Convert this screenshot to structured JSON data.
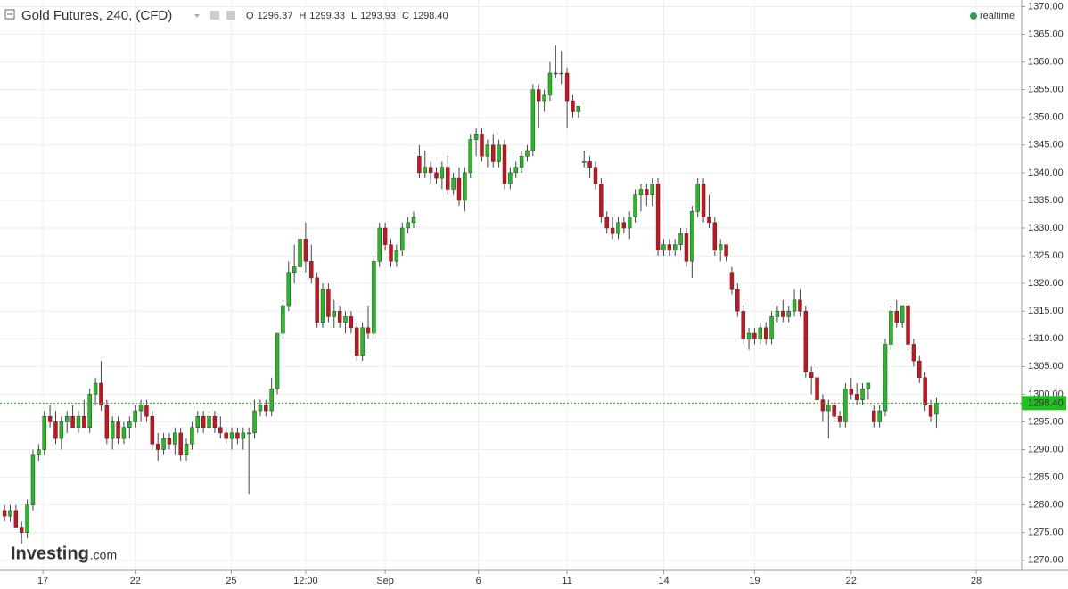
{
  "chart_data": {
    "type": "candlestick",
    "title": "Gold Futures, 240, (CFD)",
    "header_ohlc": [
      {
        "key": "O",
        "value": "1296.37"
      },
      {
        "key": "H",
        "value": "1299.33"
      },
      {
        "key": "L",
        "value": "1293.93"
      },
      {
        "key": "C",
        "value": "1298.40"
      }
    ],
    "status": "realtime",
    "logo": {
      "main": "Investing",
      "suffix": ".com"
    },
    "up_color": "#1fbf1f",
    "down_color": "#d0101c",
    "last_price": {
      "value": 1298.4,
      "label": "1298.40"
    },
    "ylim": [
      1268.2,
      1371.2
    ],
    "yticks": [
      {
        "value": 1270,
        "label": "1270.00"
      },
      {
        "value": 1275,
        "label": "1275.00"
      },
      {
        "value": 1280,
        "label": "1280.00"
      },
      {
        "value": 1285,
        "label": "1285.00"
      },
      {
        "value": 1290,
        "label": "1290.00"
      },
      {
        "value": 1295,
        "label": "1295.00"
      },
      {
        "value": 1300,
        "label": "1300.00"
      },
      {
        "value": 1305,
        "label": "1305.00"
      },
      {
        "value": 1310,
        "label": "1310.00"
      },
      {
        "value": 1315,
        "label": "1315.00"
      },
      {
        "value": 1320,
        "label": "1320.00"
      },
      {
        "value": 1325,
        "label": "1325.00"
      },
      {
        "value": 1330,
        "label": "1330.00"
      },
      {
        "value": 1335,
        "label": "1335.00"
      },
      {
        "value": 1340,
        "label": "1340.00"
      },
      {
        "value": 1345,
        "label": "1345.00"
      },
      {
        "value": 1350,
        "label": "1350.00"
      },
      {
        "value": 1355,
        "label": "1355.00"
      },
      {
        "value": 1360,
        "label": "1360.00"
      },
      {
        "value": 1365,
        "label": "1365.00"
      },
      {
        "value": 1370,
        "label": "1370.00"
      }
    ],
    "xlim": [
      -0.8,
      179
    ],
    "xticks": [
      {
        "value": 6.75,
        "label": "17"
      },
      {
        "value": 23,
        "label": "22"
      },
      {
        "value": 39.9,
        "label": "25"
      },
      {
        "value": 53,
        "label": "12:00"
      },
      {
        "value": 67,
        "label": "Sep"
      },
      {
        "value": 83.4,
        "label": "6"
      },
      {
        "value": 99,
        "label": "11"
      },
      {
        "value": 116,
        "label": "14"
      },
      {
        "value": 132,
        "label": "19"
      },
      {
        "value": 149,
        "label": "22"
      },
      {
        "value": 171,
        "label": "28"
      }
    ],
    "grid": true,
    "ohlc": [
      [
        1279,
        1280,
        1277,
        1278
      ],
      [
        1278,
        1280,
        1277,
        1279
      ],
      [
        1279,
        1280,
        1276,
        1276
      ],
      [
        1276,
        1277,
        1273,
        1275
      ],
      [
        1275,
        1281,
        1274,
        1280
      ],
      [
        1280,
        1290,
        1279,
        1289
      ],
      [
        1289,
        1291,
        1288,
        1290
      ],
      [
        1290,
        1297,
        1289,
        1296
      ],
      [
        1296,
        1298,
        1294,
        1295
      ],
      [
        1295,
        1297,
        1291,
        1292
      ],
      [
        1292,
        1296,
        1290,
        1295
      ],
      [
        1295,
        1297,
        1293,
        1296
      ],
      [
        1296,
        1298,
        1294,
        1294
      ],
      [
        1294,
        1297,
        1293,
        1296
      ],
      [
        1296,
        1299,
        1294,
        1294
      ],
      [
        1294,
        1301,
        1293,
        1300
      ],
      [
        1300,
        1303,
        1298,
        1302
      ],
      [
        1302,
        1306,
        1297,
        1298
      ],
      [
        1298,
        1299,
        1291,
        1292
      ],
      [
        1292,
        1296,
        1290,
        1295
      ],
      [
        1295,
        1296,
        1291,
        1292
      ],
      [
        1292,
        1295,
        1291,
        1294
      ],
      [
        1294,
        1296,
        1292,
        1295
      ],
      [
        1295,
        1298,
        1294,
        1297
      ],
      [
        1297,
        1299,
        1295,
        1298
      ],
      [
        1298,
        1299,
        1295,
        1296
      ],
      [
        1296,
        1297,
        1290,
        1291
      ],
      [
        1291,
        1293,
        1288,
        1290
      ],
      [
        1290,
        1293,
        1289,
        1292
      ],
      [
        1292,
        1293,
        1290,
        1291
      ],
      [
        1291,
        1294,
        1289,
        1293
      ],
      [
        1293,
        1294,
        1288,
        1289
      ],
      [
        1289,
        1292,
        1288,
        1291
      ],
      [
        1291,
        1295,
        1290,
        1294
      ],
      [
        1294,
        1297,
        1293,
        1296
      ],
      [
        1296,
        1297,
        1293,
        1294
      ],
      [
        1294,
        1297,
        1293,
        1296
      ],
      [
        1296,
        1297,
        1293,
        1294
      ],
      [
        1294,
        1296,
        1292,
        1293
      ],
      [
        1293,
        1294,
        1291,
        1292
      ],
      [
        1292,
        1294,
        1290,
        1293
      ],
      [
        1293,
        1294,
        1291,
        1292
      ],
      [
        1292,
        1294,
        1290,
        1293
      ],
      [
        1293,
        1294,
        1282,
        1293
      ],
      [
        1293,
        1299,
        1292,
        1297
      ],
      [
        1297,
        1299,
        1296,
        1298
      ],
      [
        1298,
        1299,
        1296,
        1297
      ],
      [
        1297,
        1303,
        1296,
        1301
      ],
      [
        1301,
        1311,
        1300,
        1311
      ],
      [
        1311,
        1317,
        1310,
        1316
      ],
      [
        1316,
        1324,
        1315,
        1322
      ],
      [
        1322,
        1327,
        1320,
        1323
      ],
      [
        1323,
        1330,
        1322,
        1328
      ],
      [
        1328,
        1331,
        1322,
        1324
      ],
      [
        1324,
        1327,
        1320,
        1321
      ],
      [
        1321,
        1322,
        1312,
        1313
      ],
      [
        1313,
        1320,
        1312,
        1319
      ],
      [
        1319,
        1320,
        1313,
        1314
      ],
      [
        1314,
        1317,
        1312,
        1315
      ],
      [
        1315,
        1316,
        1312,
        1313
      ],
      [
        1313,
        1315,
        1311,
        1314
      ],
      [
        1314,
        1315,
        1311,
        1312
      ],
      [
        1312,
        1313,
        1306,
        1307
      ],
      [
        1307,
        1313,
        1306,
        1312
      ],
      [
        1312,
        1316,
        1310,
        1311
      ],
      [
        1311,
        1325,
        1310,
        1324
      ],
      [
        1324,
        1331,
        1323,
        1330
      ],
      [
        1330,
        1331,
        1326,
        1327
      ],
      [
        1327,
        1328,
        1323,
        1324
      ],
      [
        1324,
        1327,
        1323,
        1326
      ],
      [
        1326,
        1331,
        1325,
        1330
      ],
      [
        1330,
        1332,
        1329,
        1331
      ],
      [
        1331,
        1333,
        1330,
        1332
      ],
      [
        1343,
        1345,
        1339,
        1340
      ],
      [
        1340,
        1344,
        1339,
        1341
      ],
      [
        1341,
        1342,
        1338,
        1340
      ],
      [
        1340,
        1341,
        1338,
        1339
      ],
      [
        1339,
        1342,
        1337,
        1341
      ],
      [
        1341,
        1343,
        1336,
        1337
      ],
      [
        1337,
        1340,
        1336,
        1339
      ],
      [
        1339,
        1341,
        1334,
        1335
      ],
      [
        1335,
        1341,
        1333,
        1340
      ],
      [
        1340,
        1347,
        1339,
        1346
      ],
      [
        1346,
        1348,
        1343,
        1347
      ],
      [
        1347,
        1348,
        1342,
        1343
      ],
      [
        1343,
        1346,
        1341,
        1345
      ],
      [
        1345,
        1347,
        1341,
        1342
      ],
      [
        1342,
        1346,
        1341,
        1345
      ],
      [
        1345,
        1346,
        1337,
        1338
      ],
      [
        1338,
        1341,
        1337,
        1340
      ],
      [
        1340,
        1342,
        1339,
        1341
      ],
      [
        1341,
        1344,
        1340,
        1343
      ],
      [
        1343,
        1345,
        1342,
        1344
      ],
      [
        1344,
        1356,
        1343,
        1355
      ],
      [
        1355,
        1356,
        1348,
        1353
      ],
      [
        1353,
        1355,
        1351,
        1354
      ],
      [
        1354,
        1360,
        1353,
        1358
      ],
      [
        1358,
        1363,
        1357,
        1358
      ],
      [
        1358,
        1362,
        1356,
        1358
      ],
      [
        1358,
        1359,
        1348,
        1353
      ],
      [
        1353,
        1354,
        1350,
        1351
      ],
      [
        1351,
        1352,
        1350,
        1352
      ],
      [
        1342,
        1344,
        1341,
        1342
      ],
      [
        1342,
        1343,
        1339,
        1341
      ],
      [
        1341,
        1342,
        1337,
        1338
      ],
      [
        1338,
        1339,
        1331,
        1332
      ],
      [
        1332,
        1333,
        1329,
        1330
      ],
      [
        1330,
        1332,
        1328,
        1329
      ],
      [
        1329,
        1332,
        1328,
        1331
      ],
      [
        1331,
        1332,
        1329,
        1330
      ],
      [
        1330,
        1333,
        1328,
        1332
      ],
      [
        1332,
        1337,
        1331,
        1336
      ],
      [
        1336,
        1338,
        1333,
        1337
      ],
      [
        1337,
        1338,
        1334,
        1336
      ],
      [
        1336,
        1339,
        1334,
        1338
      ],
      [
        1338,
        1339,
        1325,
        1326
      ],
      [
        1326,
        1328,
        1325,
        1327
      ],
      [
        1327,
        1328,
        1325,
        1326
      ],
      [
        1326,
        1328,
        1325,
        1327
      ],
      [
        1327,
        1330,
        1326,
        1329
      ],
      [
        1329,
        1330,
        1323,
        1324
      ],
      [
        1324,
        1334,
        1321,
        1333
      ],
      [
        1333,
        1339,
        1332,
        1338
      ],
      [
        1338,
        1339,
        1331,
        1332
      ],
      [
        1332,
        1336,
        1330,
        1331
      ],
      [
        1331,
        1332,
        1325,
        1326
      ],
      [
        1326,
        1328,
        1324,
        1327
      ],
      [
        1327,
        1327,
        1324,
        1325
      ],
      [
        1322,
        1323,
        1318,
        1319
      ],
      [
        1319,
        1320,
        1314,
        1315
      ],
      [
        1315,
        1316,
        1309,
        1310
      ],
      [
        1310,
        1312,
        1308,
        1311
      ],
      [
        1311,
        1312,
        1309,
        1310
      ],
      [
        1310,
        1313,
        1309,
        1312
      ],
      [
        1312,
        1313,
        1309,
        1310
      ],
      [
        1310,
        1315,
        1309,
        1314
      ],
      [
        1314,
        1316,
        1313,
        1315
      ],
      [
        1315,
        1317,
        1313,
        1314
      ],
      [
        1314,
        1316,
        1313,
        1315
      ],
      [
        1315,
        1319,
        1314,
        1317
      ],
      [
        1317,
        1319,
        1314,
        1315
      ],
      [
        1315,
        1316,
        1303,
        1304
      ],
      [
        1304,
        1305,
        1300,
        1303
      ],
      [
        1303,
        1305,
        1298,
        1299
      ],
      [
        1299,
        1300,
        1295,
        1297
      ],
      [
        1297,
        1299,
        1292,
        1298
      ],
      [
        1298,
        1299,
        1295,
        1296
      ],
      [
        1296,
        1297,
        1294,
        1295
      ],
      [
        1295,
        1302,
        1294,
        1301
      ],
      [
        1301,
        1303,
        1299,
        1300
      ],
      [
        1300,
        1302,
        1298,
        1299
      ],
      [
        1299,
        1302,
        1298,
        1301
      ],
      [
        1301,
        1302,
        1299,
        1302
      ],
      [
        1297,
        1298,
        1294,
        1295
      ],
      [
        1295,
        1298,
        1294,
        1297
      ],
      [
        1297,
        1310,
        1296,
        1309
      ],
      [
        1309,
        1316,
        1308,
        1315
      ],
      [
        1315,
        1317,
        1312,
        1313
      ],
      [
        1313,
        1316,
        1312,
        1316
      ],
      [
        1316,
        1316,
        1308,
        1309
      ],
      [
        1309,
        1310,
        1305,
        1306
      ],
      [
        1306,
        1307,
        1302,
        1303
      ],
      [
        1303,
        1304,
        1297,
        1298
      ],
      [
        1298,
        1299,
        1295,
        1296
      ],
      [
        1296.37,
        1299.33,
        1293.93,
        1298.4
      ]
    ]
  }
}
